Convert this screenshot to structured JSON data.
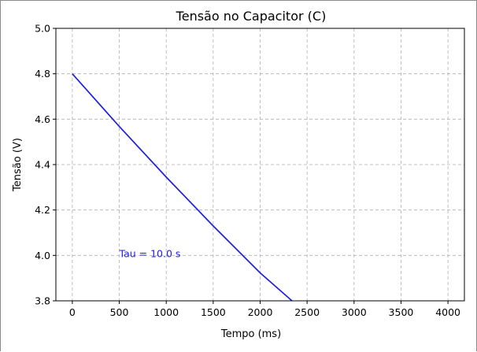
{
  "chart_data": {
    "type": "line",
    "title": "Tensão no Capacitor (C)",
    "xlabel": "Tempo (ms)",
    "ylabel": "Tensão (V)",
    "xlim": [
      -175,
      4175
    ],
    "ylim": [
      3.8,
      5.0
    ],
    "x_ticks": [
      0,
      500,
      1000,
      1500,
      2000,
      2500,
      3000,
      3500,
      4000
    ],
    "y_ticks": [
      3.8,
      4.0,
      4.2,
      4.4,
      4.6,
      4.8,
      5.0
    ],
    "x_tick_labels": [
      "0",
      "500",
      "1000",
      "1500",
      "2000",
      "2500",
      "3000",
      "3500",
      "4000"
    ],
    "y_tick_labels": [
      "3.8",
      "4.0",
      "4.2",
      "4.4",
      "4.6",
      "4.8",
      "5.0"
    ],
    "grid": true,
    "series": [
      {
        "color": "#1f1fe0",
        "x": [
          0,
          500,
          1000,
          1500,
          2000,
          2339
        ],
        "y": [
          4.8,
          4.568,
          4.345,
          4.13,
          3.923,
          3.8
        ]
      }
    ],
    "annotations": [
      {
        "text": "Tau = 10.0 s",
        "x": 500,
        "y": 4.0,
        "color": "#1f1fe0"
      }
    ]
  }
}
